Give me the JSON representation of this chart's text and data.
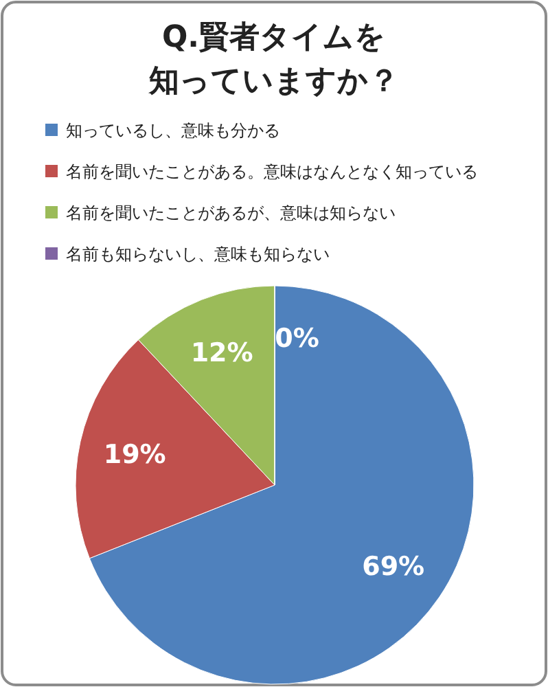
{
  "chart_data": {
    "type": "pie",
    "title": "Q.賢者タイムを知っていますか？",
    "categories": [
      "知っているし、意味も分かる",
      "名前を聞いたことがある。意味はなんとなく知っている",
      "名前を聞いたことがあるが、意味は知らない",
      "名前も知らないし、意味も知らない"
    ],
    "values": [
      69,
      19,
      12,
      0
    ],
    "colors": [
      "#4f81bd",
      "#c0504d",
      "#9bbb59",
      "#8064a2"
    ],
    "value_labels": [
      "69%",
      "19%",
      "12%",
      "0%"
    ],
    "legend": "top"
  }
}
